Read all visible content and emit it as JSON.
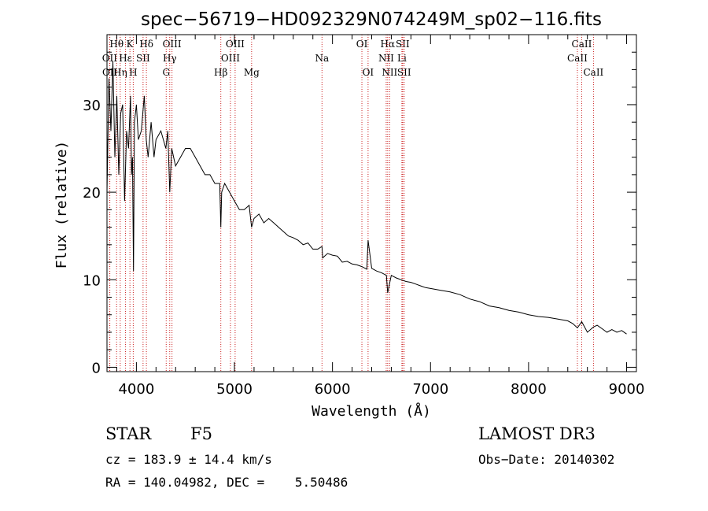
{
  "chart_data": {
    "type": "line",
    "title": "spec−56719−HD092329N074249M_sp02−116.fits",
    "xlabel": "Wavelength (Å)",
    "ylabel": "Flux (relative)",
    "xlim": [
      3700,
      9100
    ],
    "ylim": [
      -0.5,
      38
    ],
    "xticks": [
      {
        "value": 4000,
        "label": "4000"
      },
      {
        "value": 5000,
        "label": "5000"
      },
      {
        "value": 6000,
        "label": "6000"
      },
      {
        "value": 7000,
        "label": "7000"
      },
      {
        "value": 8000,
        "label": "8000"
      },
      {
        "value": 9000,
        "label": "9000"
      }
    ],
    "yticks": [
      {
        "value": 0,
        "label": "0"
      },
      {
        "value": 10,
        "label": "10"
      },
      {
        "value": 20,
        "label": "20"
      },
      {
        "value": 30,
        "label": "30"
      }
    ],
    "series": [
      {
        "name": "spectrum",
        "x": [
          3700,
          3720,
          3740,
          3760,
          3780,
          3800,
          3820,
          3840,
          3860,
          3880,
          3900,
          3920,
          3940,
          3950,
          3960,
          3970,
          3980,
          4000,
          4020,
          4050,
          4080,
          4100,
          4120,
          4150,
          4180,
          4200,
          4250,
          4300,
          4320,
          4340,
          4360,
          4380,
          4400,
          4450,
          4500,
          4550,
          4600,
          4650,
          4700,
          4750,
          4800,
          4850,
          4861,
          4870,
          4900,
          4950,
          5000,
          5050,
          5100,
          5150,
          5175,
          5200,
          5250,
          5300,
          5350,
          5400,
          5450,
          5500,
          5550,
          5600,
          5650,
          5700,
          5750,
          5800,
          5850,
          5893,
          5900,
          5950,
          6000,
          6050,
          6100,
          6150,
          6200,
          6250,
          6300,
          6350,
          6363,
          6400,
          6450,
          6500,
          6550,
          6563,
          6600,
          6650,
          6700,
          6750,
          6800,
          6850,
          6900,
          6950,
          7000,
          7100,
          7200,
          7300,
          7400,
          7500,
          7600,
          7700,
          7800,
          7900,
          8000,
          8100,
          8200,
          8300,
          8400,
          8450,
          8498,
          8542,
          8600,
          8662,
          8700,
          8750,
          8800,
          8850,
          8900,
          8950,
          9000
        ],
        "values": [
          20,
          33,
          27,
          35,
          24,
          31,
          22,
          29,
          30,
          19,
          27,
          25,
          31,
          22,
          24,
          11,
          28,
          30,
          26,
          27,
          31,
          26,
          24,
          28,
          24,
          26,
          27,
          25,
          27,
          20,
          25,
          24,
          23,
          24,
          25,
          25,
          24,
          23,
          22,
          22,
          21,
          21,
          16,
          20,
          21,
          20,
          19,
          18,
          18,
          18.5,
          16,
          17,
          17.5,
          16.5,
          17,
          16.5,
          16,
          15.5,
          15,
          14.8,
          14.5,
          14,
          14.2,
          13.5,
          13.5,
          13.8,
          12.5,
          13,
          12.8,
          12.7,
          12,
          12.1,
          11.8,
          11.7,
          11.5,
          11.2,
          14.5,
          11.3,
          11,
          10.8,
          10.5,
          8.5,
          10.5,
          10.2,
          10,
          9.8,
          9.7,
          9.5,
          9.3,
          9.1,
          9,
          8.8,
          8.6,
          8.3,
          7.8,
          7.5,
          7,
          6.8,
          6.5,
          6.3,
          6,
          5.8,
          5.7,
          5.5,
          5.3,
          5,
          4.5,
          5.2,
          4,
          4.6,
          4.8,
          4.4,
          4,
          4.3,
          4,
          4.2,
          3.8
        ]
      }
    ],
    "spectral_lines": [
      {
        "label": "Hθ",
        "wl": 3798,
        "row": 0
      },
      {
        "label": "OII",
        "wl": 3727,
        "row": 1
      },
      {
        "label": "OII",
        "wl": 3729,
        "row": 2
      },
      {
        "label": "Hη",
        "wl": 3835,
        "row": 2
      },
      {
        "label": "K",
        "wl": 3934,
        "row": 0
      },
      {
        "label": "Hε",
        "wl": 3889,
        "row": 1
      },
      {
        "label": "SII",
        "wl": 4068,
        "row": 1
      },
      {
        "label": "H",
        "wl": 3968,
        "row": 2
      },
      {
        "label": "Hδ",
        "wl": 4102,
        "row": 0
      },
      {
        "label": "OIII",
        "wl": 4363,
        "row": 0
      },
      {
        "label": "Hγ",
        "wl": 4340,
        "row": 1
      },
      {
        "label": "G",
        "wl": 4304,
        "row": 2
      },
      {
        "label": "Hβ",
        "wl": 4861,
        "row": 2
      },
      {
        "label": "OIII",
        "wl": 5007,
        "row": 0
      },
      {
        "label": "OIII",
        "wl": 4959,
        "row": 1
      },
      {
        "label": "Mg",
        "wl": 5175,
        "row": 2
      },
      {
        "label": "Na",
        "wl": 5893,
        "row": 1
      },
      {
        "label": "OI",
        "wl": 6300,
        "row": 0
      },
      {
        "label": "OI",
        "wl": 6363,
        "row": 2
      },
      {
        "label": "Hα",
        "wl": 6563,
        "row": 0
      },
      {
        "label": "SII",
        "wl": 6716,
        "row": 0
      },
      {
        "label": "NII",
        "wl": 6548,
        "row": 1
      },
      {
        "label": "Li",
        "wl": 6708,
        "row": 1
      },
      {
        "label": "NII",
        "wl": 6583,
        "row": 2
      },
      {
        "label": "SII",
        "wl": 6731,
        "row": 2
      },
      {
        "label": "CaII",
        "wl": 8542,
        "row": 0
      },
      {
        "label": "CaII",
        "wl": 8498,
        "row": 1
      },
      {
        "label": "CaII",
        "wl": 8662,
        "row": 2
      }
    ],
    "colors": {
      "axis": "#000000",
      "line": "#000000",
      "marker": "#cc2222"
    }
  },
  "info": {
    "class_label": "STAR",
    "subclass": "F5",
    "survey": "LAMOST DR3",
    "cz": "cz = 183.9 ± 14.4 km/s",
    "obs_date": "Obs−Date: 20140302",
    "coords": "RA = 140.04982, DEC =    5.50486"
  }
}
